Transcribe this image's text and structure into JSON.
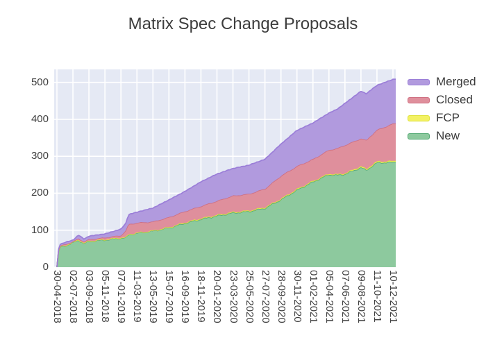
{
  "title": "Matrix Spec Change Proposals",
  "chart_data": {
    "type": "area",
    "stacked": true,
    "title": "Matrix Spec Change Proposals",
    "xlabel": "",
    "ylabel": "",
    "grid": true,
    "legend_position": "right-top",
    "plot_bg": "#e5e9f4",
    "grid_color": "#ffffff",
    "y_ticks": [
      0,
      100,
      200,
      300,
      400,
      500
    ],
    "y_max": 535,
    "x_tick_labels": [
      "30-04-2018",
      "02-07-2018",
      "03-09-2018",
      "05-11-2018",
      "07-01-2019",
      "11-03-2019",
      "13-05-2019",
      "15-07-2019",
      "16-09-2019",
      "18-11-2019",
      "20-01-2020",
      "23-03-2020",
      "25-05-2020",
      "27-07-2020",
      "28-09-2020",
      "30-11-2020",
      "01-02-2021",
      "05-04-2021",
      "07-06-2021",
      "09-08-2021",
      "11-10-2021",
      "10-12-2021"
    ],
    "sample_positions": [
      0,
      0.12,
      0.2,
      0.5,
      1,
      1.35,
      1.7,
      2,
      3,
      4,
      4.35,
      4.45,
      5,
      6,
      7,
      8,
      9,
      10,
      11,
      12,
      13,
      14,
      15,
      16,
      17,
      17.5,
      18,
      19,
      19.35,
      19.5,
      20,
      21
    ],
    "series_note": "values are per-series counts at sample_positions (tick-index units); stack order bottom-to-top",
    "series": [
      {
        "name": "New",
        "fill": "#8dc99e",
        "line": "#53a873",
        "values": [
          0,
          50,
          55,
          58,
          66,
          74,
          64,
          70,
          74,
          79,
          80,
          88,
          92,
          98,
          107,
          119,
          130,
          139,
          147,
          151,
          160,
          183,
          209,
          231,
          251,
          249,
          252,
          270,
          262,
          268,
          283,
          284
        ]
      },
      {
        "name": "FCP",
        "fill": "#f3f163",
        "line": "#dfe23c",
        "values": [
          0,
          1,
          1,
          1,
          1,
          1,
          1,
          1,
          1,
          1,
          1,
          1,
          1,
          1,
          1,
          2,
          2,
          2,
          2,
          2,
          2,
          2,
          2,
          2,
          2,
          2,
          2,
          3,
          3,
          3,
          3,
          3
        ]
      },
      {
        "name": "Closed",
        "fill": "#df8f9c",
        "line": "#cf6e80",
        "values": [
          0,
          2,
          2,
          3,
          2,
          3,
          4,
          4,
          5,
          6,
          20,
          27,
          27,
          24,
          27,
          30,
          33,
          38,
          44,
          45,
          50,
          62,
          62,
          59,
          64,
          70,
          76,
          75,
          78,
          80,
          85,
          101
        ]
      },
      {
        "name": "Merged",
        "fill": "#b19ade",
        "line": "#9b7ed8",
        "values": [
          0,
          3,
          4,
          5,
          4,
          9,
          7,
          9,
          10,
          17,
          20,
          26,
          29,
          37,
          47,
          54,
          66,
          73,
          74,
          78,
          80,
          86,
          97,
          98,
          100,
          106,
          113,
          128,
          126,
          124,
          121,
          120
        ]
      }
    ],
    "legend_order": [
      "Merged",
      "Closed",
      "FCP",
      "New"
    ]
  }
}
